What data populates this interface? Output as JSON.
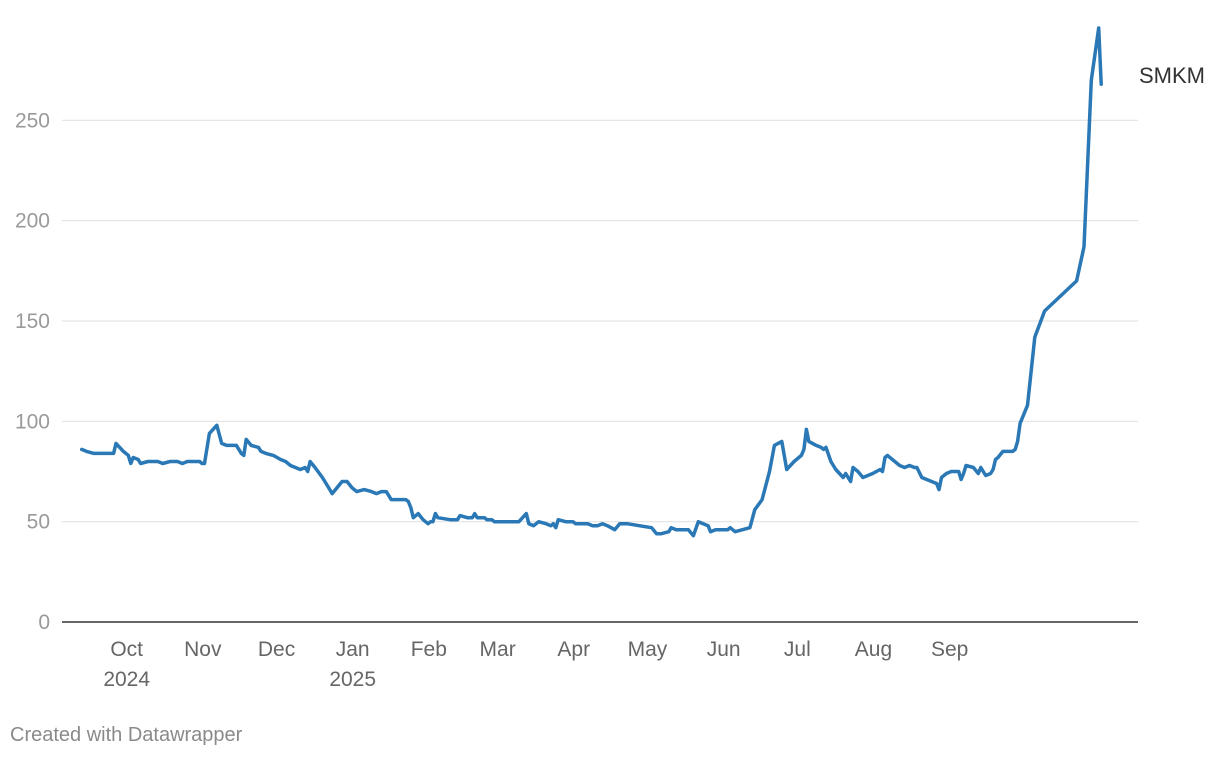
{
  "chart_data": {
    "type": "line",
    "title": "",
    "xlabel": "",
    "ylabel": "",
    "ylim": [
      0,
      300
    ],
    "yticks": [
      0,
      50,
      100,
      150,
      200,
      250
    ],
    "grid": true,
    "x_ticks": [
      {
        "date": "2024-10-01",
        "label": "Oct",
        "sublabel": "2024"
      },
      {
        "date": "2024-11-01",
        "label": "Nov",
        "sublabel": ""
      },
      {
        "date": "2024-12-01",
        "label": "Dec",
        "sublabel": ""
      },
      {
        "date": "2025-01-01",
        "label": "Jan",
        "sublabel": "2025"
      },
      {
        "date": "2025-02-01",
        "label": "Feb",
        "sublabel": ""
      },
      {
        "date": "2025-03-01",
        "label": "Mar",
        "sublabel": ""
      },
      {
        "date": "2025-04-01",
        "label": "Apr",
        "sublabel": ""
      },
      {
        "date": "2025-05-01",
        "label": "May",
        "sublabel": ""
      },
      {
        "date": "2025-06-01",
        "label": "Jun",
        "sublabel": ""
      },
      {
        "date": "2025-07-01",
        "label": "Jul",
        "sublabel": ""
      },
      {
        "date": "2025-08-01",
        "label": "Aug",
        "sublabel": ""
      },
      {
        "date": "2025-09-01",
        "label": "Sep",
        "sublabel": ""
      }
    ],
    "series": [
      {
        "name": "SMKM",
        "color": "#2a78b5",
        "points": [
          [
            "2024-09-20",
            86
          ],
          [
            "2024-09-22",
            85
          ],
          [
            "2024-09-25",
            84
          ],
          [
            "2024-09-27",
            84
          ],
          [
            "2024-09-30",
            84
          ],
          [
            "2024-10-03",
            84
          ],
          [
            "2024-10-04",
            89
          ],
          [
            "2024-10-07",
            85
          ],
          [
            "2024-10-09",
            83
          ],
          [
            "2024-10-10",
            79
          ],
          [
            "2024-10-11",
            82
          ],
          [
            "2024-10-13",
            81
          ],
          [
            "2024-10-14",
            79
          ],
          [
            "2024-10-17",
            80
          ],
          [
            "2024-10-21",
            80
          ],
          [
            "2024-10-23",
            79
          ],
          [
            "2024-10-26",
            80
          ],
          [
            "2024-10-29",
            80
          ],
          [
            "2024-10-31",
            79
          ],
          [
            "2024-11-02",
            80
          ],
          [
            "2024-11-04",
            80
          ],
          [
            "2024-11-07",
            80
          ],
          [
            "2024-11-08",
            79
          ],
          [
            "2024-11-09",
            79
          ],
          [
            "2024-11-11",
            94
          ],
          [
            "2024-11-14",
            98
          ],
          [
            "2024-11-16",
            89
          ],
          [
            "2024-11-18",
            88
          ],
          [
            "2024-11-22",
            88
          ],
          [
            "2024-11-24",
            84
          ],
          [
            "2024-11-25",
            83
          ],
          [
            "2024-11-26",
            91
          ],
          [
            "2024-11-28",
            88
          ],
          [
            "2024-12-01",
            87
          ],
          [
            "2024-12-02",
            85
          ],
          [
            "2024-12-04",
            84
          ],
          [
            "2024-12-07",
            83
          ],
          [
            "2024-12-10",
            81
          ],
          [
            "2024-12-12",
            80
          ],
          [
            "2024-12-14",
            78
          ],
          [
            "2024-12-16",
            77
          ],
          [
            "2024-12-18",
            76
          ],
          [
            "2024-12-20",
            77
          ],
          [
            "2024-12-21",
            75
          ],
          [
            "2024-12-22",
            80
          ],
          [
            "2024-12-24",
            77
          ],
          [
            "2024-12-27",
            72
          ],
          [
            "2024-12-29",
            68
          ],
          [
            "2024-12-31",
            64
          ],
          [
            "2025-01-02",
            67
          ],
          [
            "2025-01-04",
            70
          ],
          [
            "2025-01-06",
            70
          ],
          [
            "2025-01-08",
            67
          ],
          [
            "2025-01-10",
            65
          ],
          [
            "2025-01-13",
            66
          ],
          [
            "2025-01-16",
            65
          ],
          [
            "2025-01-18",
            64
          ],
          [
            "2025-01-20",
            65
          ],
          [
            "2025-01-22",
            65
          ],
          [
            "2025-01-24",
            61
          ],
          [
            "2025-01-27",
            61
          ],
          [
            "2025-01-30",
            61
          ],
          [
            "2025-01-31",
            60
          ],
          [
            "2025-02-01",
            57
          ],
          [
            "2025-02-02",
            52
          ],
          [
            "2025-02-04",
            54
          ],
          [
            "2025-02-06",
            51
          ],
          [
            "2025-02-08",
            49
          ],
          [
            "2025-02-09",
            50
          ],
          [
            "2025-02-10",
            50
          ],
          [
            "2025-02-11",
            54
          ],
          [
            "2025-02-12",
            52
          ],
          [
            "2025-02-17",
            51
          ],
          [
            "2025-02-20",
            51
          ],
          [
            "2025-02-21",
            53
          ],
          [
            "2025-02-24",
            52
          ],
          [
            "2025-02-26",
            52
          ],
          [
            "2025-02-27",
            54
          ],
          [
            "2025-02-28",
            52
          ],
          [
            "2025-03-03",
            52
          ],
          [
            "2025-03-04",
            51
          ],
          [
            "2025-03-06",
            51
          ],
          [
            "2025-03-07",
            50
          ],
          [
            "2025-03-10",
            50
          ],
          [
            "2025-03-14",
            50
          ],
          [
            "2025-03-17",
            50
          ],
          [
            "2025-03-20",
            54
          ],
          [
            "2025-03-21",
            49
          ],
          [
            "2025-03-23",
            48
          ],
          [
            "2025-03-25",
            50
          ],
          [
            "2025-03-28",
            49
          ],
          [
            "2025-03-30",
            48
          ],
          [
            "2025-03-31",
            49
          ],
          [
            "2025-04-01",
            47
          ],
          [
            "2025-04-02",
            51
          ],
          [
            "2025-04-05",
            50
          ],
          [
            "2025-04-08",
            50
          ],
          [
            "2025-04-09",
            49
          ],
          [
            "2025-04-12",
            49
          ],
          [
            "2025-04-14",
            49
          ],
          [
            "2025-04-16",
            48
          ],
          [
            "2025-04-18",
            48
          ],
          [
            "2025-04-20",
            49
          ],
          [
            "2025-04-22",
            48
          ],
          [
            "2025-04-25",
            46
          ],
          [
            "2025-04-27",
            49
          ],
          [
            "2025-04-30",
            49
          ],
          [
            "2025-05-10",
            47
          ],
          [
            "2025-05-12",
            44
          ],
          [
            "2025-05-14",
            44
          ],
          [
            "2025-05-17",
            45
          ],
          [
            "2025-05-18",
            47
          ],
          [
            "2025-05-20",
            46
          ],
          [
            "2025-05-23",
            46
          ],
          [
            "2025-05-25",
            46
          ],
          [
            "2025-05-27",
            43
          ],
          [
            "2025-05-29",
            50
          ],
          [
            "2025-05-31",
            49
          ],
          [
            "2025-06-02",
            48
          ],
          [
            "2025-06-03",
            45
          ],
          [
            "2025-06-05",
            46
          ],
          [
            "2025-06-07",
            46
          ],
          [
            "2025-06-10",
            46
          ],
          [
            "2025-06-11",
            47
          ],
          [
            "2025-06-13",
            45
          ],
          [
            "2025-06-16",
            46
          ],
          [
            "2025-06-19",
            47
          ],
          [
            "2025-06-21",
            56
          ],
          [
            "2025-06-24",
            61
          ],
          [
            "2025-06-27",
            75
          ],
          [
            "2025-06-29",
            88
          ],
          [
            "2025-07-02",
            90
          ],
          [
            "2025-07-04",
            76
          ],
          [
            "2025-07-07",
            80
          ],
          [
            "2025-07-10",
            83
          ],
          [
            "2025-07-11",
            86
          ],
          [
            "2025-07-12",
            96
          ],
          [
            "2025-07-13",
            90
          ],
          [
            "2025-07-16",
            88
          ],
          [
            "2025-07-18",
            87
          ],
          [
            "2025-07-19",
            86
          ],
          [
            "2025-07-20",
            87
          ],
          [
            "2025-07-22",
            80
          ],
          [
            "2025-07-24",
            76
          ],
          [
            "2025-07-27",
            72
          ],
          [
            "2025-07-28",
            74
          ],
          [
            "2025-07-30",
            70
          ],
          [
            "2025-07-31",
            77
          ],
          [
            "2025-08-02",
            75
          ],
          [
            "2025-08-04",
            72
          ],
          [
            "2025-08-06",
            73
          ],
          [
            "2025-08-08",
            74
          ],
          [
            "2025-08-11",
            76
          ],
          [
            "2025-08-12",
            75
          ],
          [
            "2025-08-13",
            82
          ],
          [
            "2025-08-14",
            83
          ],
          [
            "2025-08-17",
            80
          ],
          [
            "2025-08-19",
            78
          ],
          [
            "2025-08-21",
            77
          ],
          [
            "2025-08-23",
            78
          ],
          [
            "2025-08-25",
            77
          ],
          [
            "2025-08-26",
            77
          ],
          [
            "2025-08-28",
            72
          ],
          [
            "2025-08-30",
            71
          ],
          [
            "2025-09-01",
            70
          ],
          [
            "2025-09-03",
            69
          ],
          [
            "2025-09-04",
            66
          ],
          [
            "2025-09-05",
            72
          ],
          [
            "2025-09-07",
            74
          ],
          [
            "2025-09-09",
            75
          ],
          [
            "2025-09-12",
            75
          ],
          [
            "2025-09-13",
            71
          ],
          [
            "2025-09-14",
            74
          ],
          [
            "2025-09-15",
            78
          ],
          [
            "2025-09-18",
            77
          ],
          [
            "2025-09-20",
            74
          ],
          [
            "2025-09-21",
            77
          ],
          [
            "2025-09-23",
            73
          ],
          [
            "2025-09-25",
            74
          ],
          [
            "2025-09-26",
            76
          ],
          [
            "2025-09-27",
            81
          ],
          [
            "2025-09-28",
            82
          ],
          [
            "2025-09-30",
            85
          ],
          [
            "2025-10-04",
            85
          ],
          [
            "2025-10-05",
            86
          ],
          [
            "2025-10-06",
            90
          ],
          [
            "2025-10-07",
            99
          ],
          [
            "2025-10-10",
            108
          ],
          [
            "2025-10-13",
            142
          ],
          [
            "2025-10-17",
            155
          ],
          [
            "2025-10-30",
            170
          ],
          [
            "2025-11-02",
            187
          ],
          [
            "2025-11-05",
            270
          ],
          [
            "2025-11-08",
            296
          ],
          [
            "2025-11-09",
            268
          ]
        ]
      }
    ]
  },
  "footer": {
    "credit": "Created with Datawrapper"
  }
}
